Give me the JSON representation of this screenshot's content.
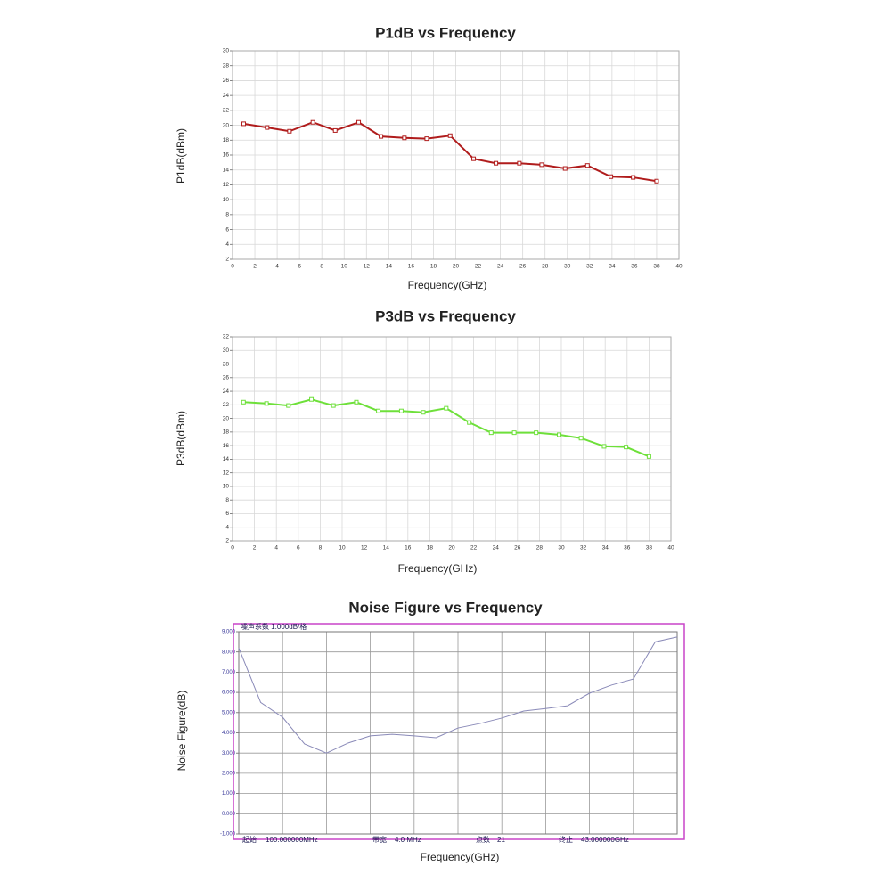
{
  "chart_data": [
    {
      "type": "line",
      "title": "P1dB vs Frequency",
      "x_label": "Frequency(GHz)",
      "y_label": "P1dB(dBm)",
      "x": [
        1,
        3.1,
        5.1,
        7.2,
        9.2,
        11.3,
        13.3,
        15.4,
        17.4,
        19.5,
        21.6,
        23.6,
        25.7,
        27.7,
        29.8,
        31.8,
        33.9,
        35.9,
        38
      ],
      "values": [
        20.2,
        19.7,
        19.2,
        20.4,
        19.3,
        20.4,
        18.5,
        18.3,
        18.2,
        18.6,
        15.5,
        14.9,
        14.9,
        14.7,
        14.2,
        14.6,
        13.1,
        13.0,
        12.5
      ],
      "color": "#b01c1c",
      "marker": "square",
      "grid": true,
      "xlim": [
        0,
        40
      ],
      "xticks": [
        0,
        2,
        4,
        6,
        8,
        10,
        12,
        14,
        16,
        18,
        20,
        22,
        24,
        26,
        28,
        30,
        32,
        34,
        36,
        38,
        40
      ],
      "ylim": [
        2,
        30
      ],
      "yticks": [
        2,
        4,
        6,
        8,
        10,
        12,
        14,
        16,
        18,
        20,
        22,
        24,
        26,
        28,
        30
      ]
    },
    {
      "type": "line",
      "title": "P3dB vs Frequency",
      "x_label": "Frequency(GHz)",
      "y_label": "P3dB(dBm)",
      "x": [
        1,
        3.1,
        5.1,
        7.2,
        9.2,
        11.3,
        13.3,
        15.4,
        17.4,
        19.5,
        21.6,
        23.6,
        25.7,
        27.7,
        29.8,
        31.8,
        33.9,
        35.9,
        38
      ],
      "values": [
        22.4,
        22.2,
        21.9,
        22.8,
        21.9,
        22.4,
        21.1,
        21.1,
        20.9,
        21.5,
        19.4,
        17.9,
        17.9,
        17.9,
        17.6,
        17.1,
        15.9,
        15.8,
        14.4
      ],
      "color": "#6ee03a",
      "marker": "square",
      "grid": true,
      "xlim": [
        0,
        40
      ],
      "xticks": [
        0,
        2,
        4,
        6,
        8,
        10,
        12,
        14,
        16,
        18,
        20,
        22,
        24,
        26,
        28,
        30,
        32,
        34,
        36,
        38,
        40
      ],
      "ylim": [
        2,
        32
      ],
      "yticks": [
        2,
        4,
        6,
        8,
        10,
        12,
        14,
        16,
        18,
        20,
        22,
        24,
        26,
        28,
        30,
        32
      ]
    },
    {
      "type": "line",
      "title": "Noise Figure vs Frequency",
      "x_label": "Frequency(GHz)",
      "y_label": "Noise Figure(dB)",
      "header": "噪声系数  1.000dB/格",
      "start_label": "起始",
      "start": "100.000000MHz",
      "bandwidth_label": "带宽",
      "bandwidth": "4.0  MHz",
      "points_label": "点数",
      "points": 21,
      "stop_label": "终止",
      "stop": "43.000000GHz",
      "values": [
        8.2,
        5.5,
        4.77,
        3.45,
        3.0,
        3.5,
        3.85,
        3.93,
        3.85,
        3.76,
        4.24,
        4.46,
        4.73,
        5.08,
        5.2,
        5.34,
        5.96,
        6.36,
        6.66,
        8.5,
        8.74
      ],
      "color": "#8a8ab8",
      "frame_color": "#c844c8",
      "grid": true,
      "ylim": [
        -1,
        9
      ],
      "yticks": [
        {
          "value": -1,
          "label": "-1.000"
        },
        {
          "value": 0,
          "label": "0.000"
        },
        {
          "value": 1,
          "label": "1.000"
        },
        {
          "value": 2,
          "label": "2.000"
        },
        {
          "value": 3,
          "label": "3.000"
        },
        {
          "value": 4,
          "label": "4.000"
        },
        {
          "value": 5,
          "label": "5.000"
        },
        {
          "value": 6,
          "label": "6.000"
        },
        {
          "value": 7,
          "label": "7.000"
        },
        {
          "value": 8,
          "label": "8.000"
        },
        {
          "value": 9,
          "label": "9.000"
        }
      ]
    }
  ]
}
